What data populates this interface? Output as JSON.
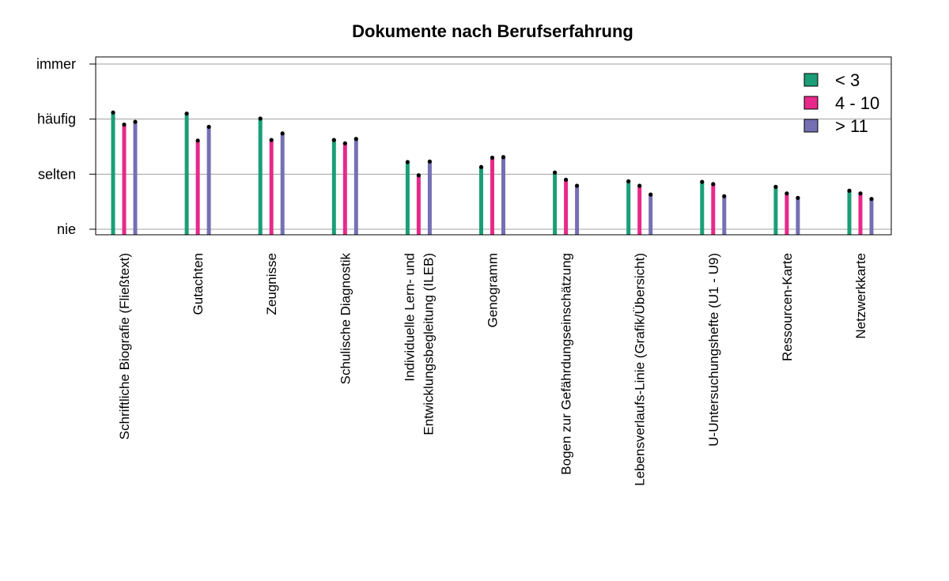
{
  "chart_data": {
    "type": "bar",
    "title": "Dokumente nach Berufserfahrung",
    "xlabel": "",
    "ylabel": "",
    "y_ticks": [
      {
        "value": 1,
        "label": "nie"
      },
      {
        "value": 2,
        "label": "selten"
      },
      {
        "value": 3,
        "label": "häufig"
      },
      {
        "value": 4,
        "label": "immer"
      }
    ],
    "ylim": [
      0.9,
      4.1
    ],
    "grid": true,
    "legend_position": "top-right",
    "categories": [
      [
        "Schriftliche Biografie (Fließtext)"
      ],
      [
        "Gutachten"
      ],
      [
        "Zeugnisse"
      ],
      [
        "Schulische Diagnostik"
      ],
      [
        "Individuelle Lern- und",
        "Entwicklungsbegleitung (ILEB)"
      ],
      [
        "Genogramm"
      ],
      [
        "Bogen zur Gefährdungseinschätzung"
      ],
      [
        "Lebensverlaufs-Linie (Grafik/Übersicht)"
      ],
      [
        "U-Untersuchungshefte (U1 - U9)"
      ],
      [
        "Ressourcen-Karte"
      ],
      [
        "Netzwerkkarte"
      ]
    ],
    "series": [
      {
        "name": "< 3",
        "color": "#1b9e77",
        "values": [
          3.12,
          3.1,
          3.01,
          2.62,
          2.22,
          2.13,
          2.03,
          1.87,
          1.86,
          1.77,
          1.7
        ]
      },
      {
        "name": "4 - 10",
        "color": "#e7298a",
        "values": [
          2.9,
          2.61,
          2.62,
          2.56,
          1.98,
          2.3,
          1.9,
          1.79,
          1.82,
          1.65,
          1.65
        ]
      },
      {
        "name": "> 11",
        "color": "#7570b3",
        "values": [
          2.95,
          2.86,
          2.74,
          2.64,
          2.23,
          2.31,
          1.79,
          1.63,
          1.6,
          1.57,
          1.55
        ]
      }
    ]
  }
}
